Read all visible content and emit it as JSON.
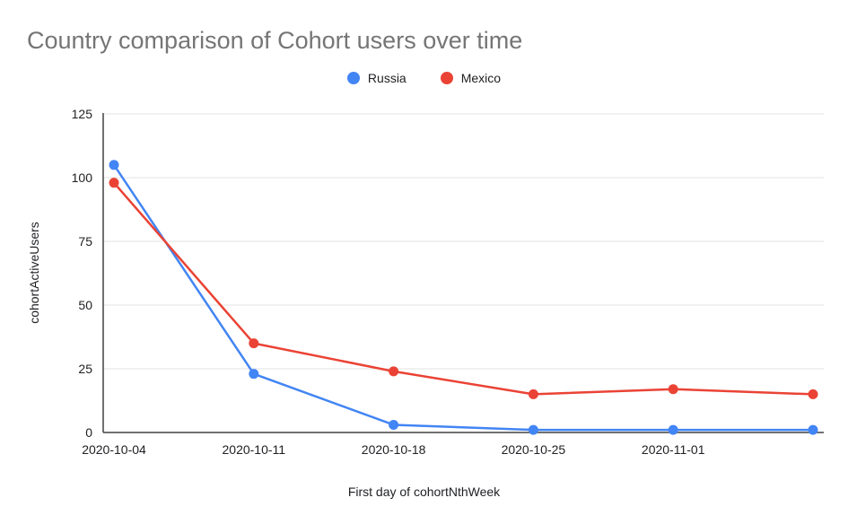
{
  "page": {
    "background": "#ffffff"
  },
  "chart_data": {
    "type": "line",
    "title": "Country comparison of Cohort users over time",
    "xlabel": "First day of cohortNthWeek",
    "ylabel": "cohortActiveUsers",
    "x_tick_labels": [
      "2020-10-04",
      "2020-10-11",
      "2020-10-18",
      "2020-10-25",
      "2020-11-01",
      ""
    ],
    "series": [
      {
        "name": "Russia",
        "color": "#4285F4",
        "values": [
          105,
          23,
          3,
          1,
          1,
          1
        ]
      },
      {
        "name": "Mexico",
        "color": "#EA4335",
        "values": [
          98,
          35,
          24,
          15,
          17,
          15
        ]
      }
    ],
    "ylim": [
      0,
      125
    ],
    "yticks": [
      0,
      25,
      50,
      75,
      100,
      125
    ],
    "grid": "horizontal",
    "legend_position": "top-center",
    "colors": {
      "title": "#757575",
      "axis_line": "#424242",
      "gridline": "#e3e3e3",
      "tick_label": "#202124"
    }
  }
}
